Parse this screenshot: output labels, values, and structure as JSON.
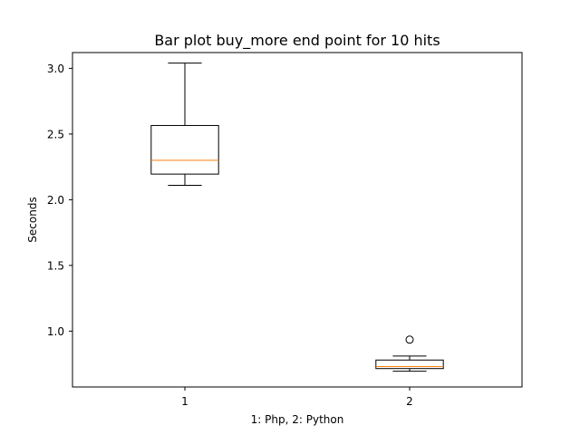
{
  "chart_data": {
    "type": "box",
    "title": "Bar plot buy_more end point for 10 hits",
    "xlabel": "1: Php, 2: Python",
    "ylabel": "Seconds",
    "ylim": [
      0.575,
      3.12
    ],
    "xlim": [
      0.5,
      2.5
    ],
    "yticks": [
      1.0,
      1.5,
      2.0,
      2.5,
      3.0
    ],
    "ytick_labels": [
      "1.0",
      "1.5",
      "2.0",
      "2.5",
      "3.0"
    ],
    "categories": [
      "1",
      "2"
    ],
    "boxes": [
      {
        "label": "1",
        "whisker_low": 2.11,
        "q1": 2.195,
        "median": 2.3,
        "q3": 2.565,
        "whisker_high": 3.04,
        "fliers": []
      },
      {
        "label": "2",
        "whisker_low": 0.695,
        "q1": 0.715,
        "median": 0.73,
        "q3": 0.78,
        "whisker_high": 0.81,
        "fliers": [
          0.935
        ]
      }
    ],
    "colors": {
      "box": "#000000",
      "median": "#ff7f0e",
      "flier": "#000000"
    },
    "grid": false
  }
}
